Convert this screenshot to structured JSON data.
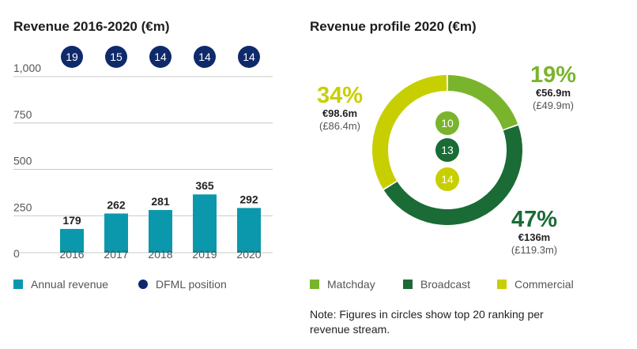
{
  "left_title": "Revenue 2016-2020 (€m)",
  "right_title": "Revenue profile 2020 (€m)",
  "colors": {
    "bar": "#0b98ad",
    "rank_circle": "#0e2a6b",
    "matchday": "#7ab42c",
    "broadcast": "#1a6b35",
    "commercial": "#c8cf00"
  },
  "chart_data": [
    {
      "type": "bar",
      "title": "Revenue 2016-2020 (€m)",
      "categories": [
        "2016",
        "2017",
        "2018",
        "2019",
        "2020"
      ],
      "series": [
        {
          "name": "Annual revenue",
          "values": [
            179,
            262,
            281,
            365,
            292
          ]
        },
        {
          "name": "DFML position",
          "values": [
            19,
            15,
            14,
            14,
            14
          ]
        }
      ],
      "yticks": [
        "0",
        "250",
        "500",
        "750",
        "1,000"
      ],
      "ylim": [
        0,
        1000
      ],
      "grid": true,
      "legend": "bottom"
    },
    {
      "type": "pie",
      "title": "Revenue profile 2020 (€m)",
      "slices": [
        {
          "name": "Matchday",
          "value": 56.9,
          "percent": "19%",
          "amount": "€56.9m",
          "previous": "(£49.9m)",
          "rank": "10",
          "color": "#7ab42c"
        },
        {
          "name": "Broadcast",
          "value": 136,
          "percent": "47%",
          "amount": "€136m",
          "previous": "(£119.3m)",
          "rank": "13",
          "color": "#1a6b35"
        },
        {
          "name": "Commercial",
          "value": 98.6,
          "percent": "34%",
          "amount": "€98.6m",
          "previous": "(£86.4m)",
          "rank": "14",
          "color": "#c8cf00"
        }
      ],
      "legend": "bottom"
    }
  ],
  "legend_left": [
    {
      "label": "Annual revenue"
    },
    {
      "label": "DFML position"
    }
  ],
  "legend_right": [
    {
      "label": "Matchday"
    },
    {
      "label": "Broadcast"
    },
    {
      "label": "Commercial"
    }
  ],
  "note": "Note: Figures in circles show top 20 ranking per revenue stream."
}
